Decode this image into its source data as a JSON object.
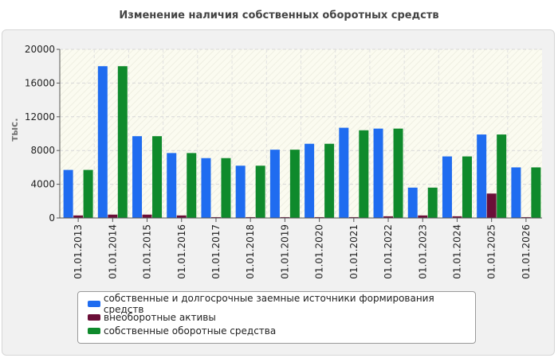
{
  "chart_data": {
    "type": "bar",
    "title": "Изменение наличия собственных оборотных средств",
    "ylabel": "тыс.",
    "ylim": [
      0,
      20000
    ],
    "yticks": [
      0,
      4000,
      8000,
      12000,
      16000,
      20000
    ],
    "grid": true,
    "legend_position": "bottom",
    "categories": [
      "01.01.2013",
      "01.01.2014",
      "01.01.2015",
      "01.01.2016",
      "01.01.2017",
      "01.01.2018",
      "01.01.2019",
      "01.01.2020",
      "01.01.2021",
      "01.01.2022",
      "01.01.2023",
      "01.01.2024",
      "01.01.2025",
      "01.01.2026"
    ],
    "series": [
      {
        "name": "собственные и долгосрочные заемные источники формирования средств",
        "color": "#1f6cf0",
        "values": [
          5700,
          18000,
          9700,
          7700,
          7100,
          6200,
          8100,
          8800,
          10700,
          10600,
          3600,
          7300,
          9900,
          6000
        ]
      },
      {
        "name": "внеоборотные активы",
        "color": "#6b0f38",
        "values": [
          300,
          400,
          400,
          300,
          100,
          100,
          100,
          100,
          100,
          200,
          300,
          200,
          2900,
          100
        ]
      },
      {
        "name": "собственные оборотные средства",
        "color": "#0f8a2c",
        "values": [
          5700,
          18000,
          9700,
          7700,
          7100,
          6200,
          8100,
          8800,
          10400,
          10600,
          3600,
          7300,
          9900,
          6000
        ]
      }
    ]
  }
}
